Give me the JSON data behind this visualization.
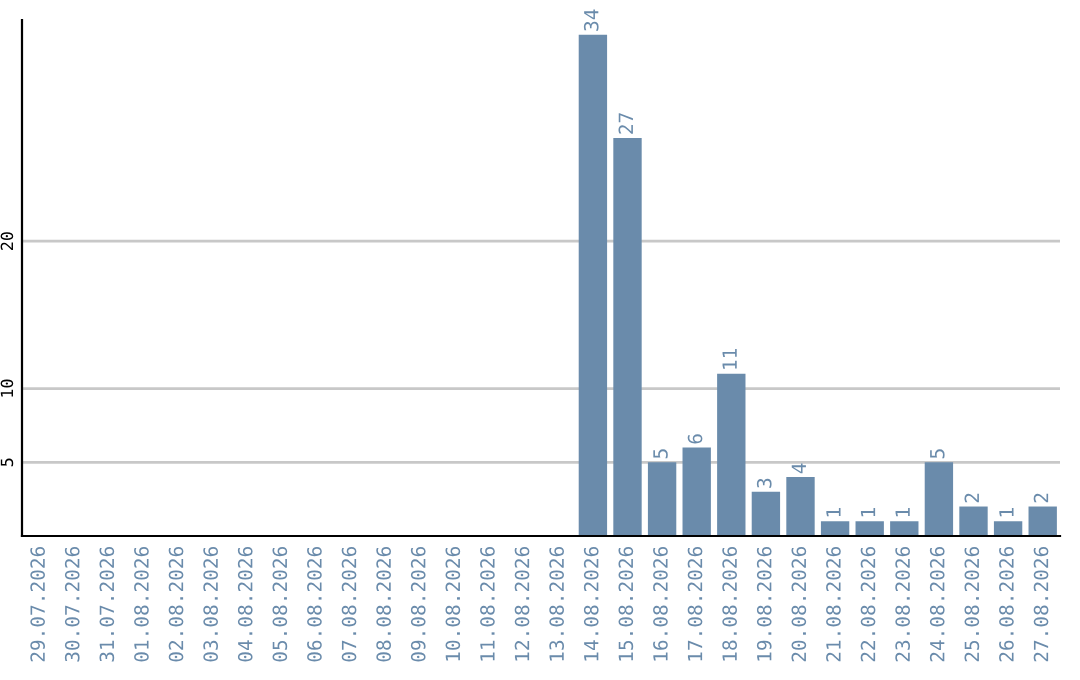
{
  "chart_data": {
    "type": "bar",
    "categories": [
      "29.07.2026",
      "30.07.2026",
      "31.07.2026",
      "01.08.2026",
      "02.08.2026",
      "03.08.2026",
      "04.08.2026",
      "05.08.2026",
      "06.08.2026",
      "07.08.2026",
      "08.08.2026",
      "09.08.2026",
      "10.08.2026",
      "11.08.2026",
      "12.08.2026",
      "13.08.2026",
      "14.08.2026",
      "15.08.2026",
      "16.08.2026",
      "17.08.2026",
      "18.08.2026",
      "19.08.2026",
      "20.08.2026",
      "21.08.2026",
      "22.08.2026",
      "23.08.2026",
      "24.08.2026",
      "25.08.2026",
      "26.08.2026",
      "27.08.2026"
    ],
    "values": [
      0,
      0,
      0,
      0,
      0,
      0,
      0,
      0,
      0,
      0,
      0,
      0,
      0,
      0,
      0,
      0,
      34,
      27,
      5,
      6,
      11,
      3,
      4,
      1,
      1,
      1,
      5,
      2,
      1,
      2
    ],
    "value_labels": [
      null,
      null,
      null,
      null,
      null,
      null,
      null,
      null,
      null,
      null,
      null,
      null,
      null,
      null,
      null,
      null,
      "34",
      "27",
      "5",
      "6",
      "11",
      "3",
      "4",
      "1",
      "1",
      "1",
      "5",
      "2",
      "1",
      "2"
    ],
    "color": "#6a8bab",
    "ylim": [
      0,
      35
    ],
    "yticks": [
      5,
      10,
      20
    ],
    "grid": "y",
    "legend": false
  }
}
